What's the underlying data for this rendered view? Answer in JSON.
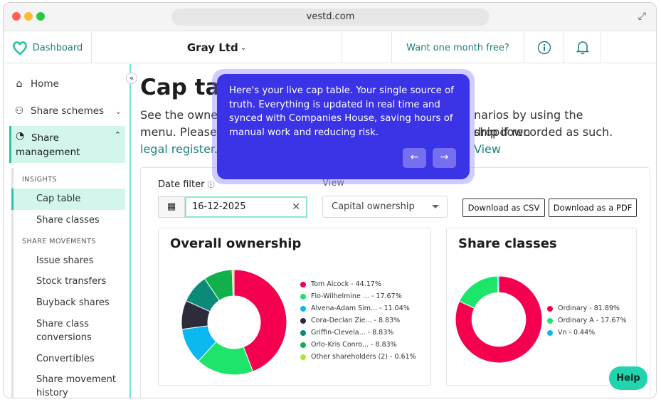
{
  "browser": {
    "url": "vestd.com",
    "colors": {
      "red": "#ff5f57",
      "yellow": "#febc2e",
      "green": "#28c840"
    }
  },
  "topbar": {
    "logo_label": "Dashboard",
    "org_name": "Gray Ltd",
    "promo": "Want one month free?",
    "info_icon": "info-circle-icon",
    "bell_icon": "bell-icon"
  },
  "sidebar": {
    "items": [
      {
        "label": "Home",
        "icon": "home-icon"
      },
      {
        "label": "Share schemes",
        "icon": "users-icon"
      },
      {
        "label": "Share management",
        "icon": "pie-chart-icon"
      }
    ],
    "insights_label": "INSIGHTS",
    "insights": [
      "Cap table",
      "Share classes"
    ],
    "movements_label": "SHARE MOVEMENTS",
    "movements": [
      "Issue shares",
      "Stock transfers",
      "Buyback shares",
      "Share class conversions",
      "Convertibles",
      "Share movement history"
    ]
  },
  "main": {
    "title": "Cap tab",
    "desc_line1": "See the owners",
    "desc_right1": "narios by using the dropdown",
    "desc_line2": "menu. Please r",
    "desc_right2": "ship if recorded as such.",
    "link_a": "View",
    "link_b": "legal register",
    "link_tail": "."
  },
  "filters": {
    "date_label": "Date filter",
    "date_value": "16-12-2025",
    "view_label": "View",
    "view_value": "Capital ownership",
    "csv_button": "Download as CSV",
    "pdf_button": "Download as a PDF"
  },
  "tooltip": {
    "text": "Here's your live cap table. Your single source of truth. Everything is updated in real time and synced with Companies House, saving hours of manual work and reducing risk.",
    "prev": "←",
    "next": "→"
  },
  "help_label": "Help",
  "chart_data": [
    {
      "type": "pie",
      "title": "Overall ownership",
      "series": [
        {
          "label": "Tom Alcock - 44.17%",
          "value": 44.17,
          "color": "#f5004f"
        },
        {
          "label": "Flo-Wilhelmine ... - 17.67%",
          "value": 17.67,
          "color": "#1de56a"
        },
        {
          "label": "Alvena-Adam Sim... - 11.04%",
          "value": 11.04,
          "color": "#0cb8f0"
        },
        {
          "label": "Cora-Declan Zie... - 8.83%",
          "value": 8.83,
          "color": "#2e2c3b"
        },
        {
          "label": "Griffin-Clevela... - 8.83%",
          "value": 8.83,
          "color": "#0b8a7a"
        },
        {
          "label": "Orlo-Kris Conro... - 8.83%",
          "value": 8.83,
          "color": "#12b04a"
        },
        {
          "label": "Other shareholders (2) - 0.61%",
          "value": 0.61,
          "color": "#a8e63a"
        }
      ]
    },
    {
      "type": "pie",
      "title": "Share classes",
      "series": [
        {
          "label": "Ordinary - 81.89%",
          "value": 81.89,
          "color": "#f5004f"
        },
        {
          "label": "Ordinary A - 17.67%",
          "value": 17.67,
          "color": "#1de56a"
        },
        {
          "label": "Vn - 0.44%",
          "value": 0.44,
          "color": "#0cb8f0"
        }
      ]
    }
  ]
}
